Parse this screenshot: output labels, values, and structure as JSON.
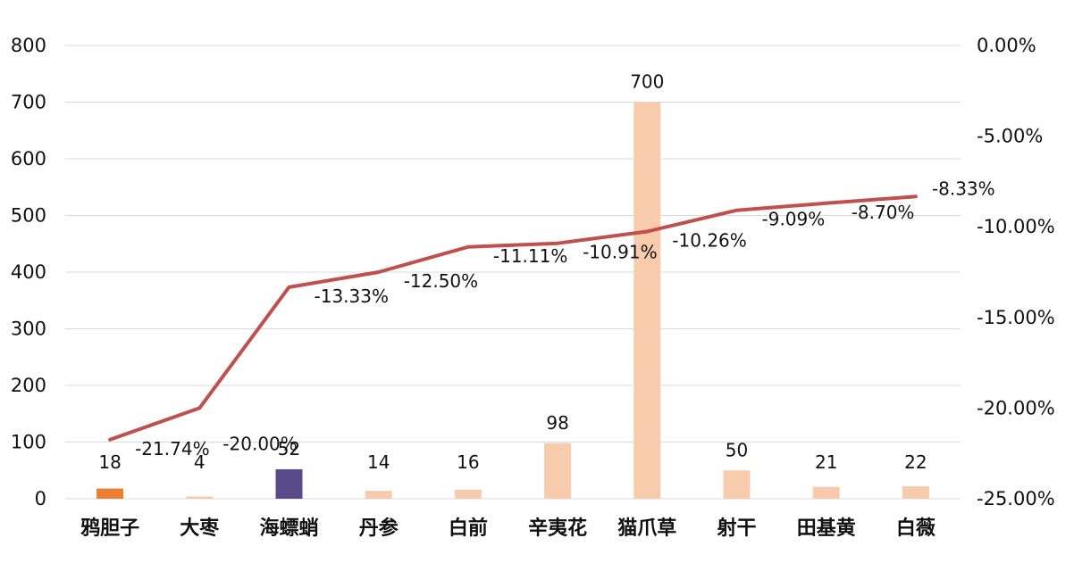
{
  "chart_data": {
    "type": "bar+line",
    "categories": [
      "鸦胆子",
      "大枣",
      "海螵蛸",
      "丹参",
      "白前",
      "辛夷花",
      "猫爪草",
      "射干",
      "田基黄",
      "白薇"
    ],
    "bar_values": [
      18,
      4,
      52,
      14,
      16,
      98,
      700,
      50,
      21,
      22
    ],
    "bar_labels": [
      "18",
      "4",
      "52",
      "14",
      "16",
      "98",
      "700",
      "50",
      "21",
      "22"
    ],
    "bar_colors": [
      "#ed7d31",
      "#f8cbad",
      "#5b4a8a",
      "#f8cbad",
      "#f8cbad",
      "#f8cbad",
      "#f8cbad",
      "#f8cbad",
      "#f8cbad",
      "#f8cbad"
    ],
    "line_values": [
      -21.74,
      -20.0,
      -13.33,
      -12.5,
      -11.11,
      -10.91,
      -10.26,
      -9.09,
      -8.7,
      -8.33
    ],
    "line_labels": [
      "-21.74%",
      "-20.00%",
      "-13.33%",
      "-12.50%",
      "-11.11%",
      "-10.91%",
      "-10.26%",
      "-9.09%",
      "-8.70%",
      "-8.33%"
    ],
    "line_color": "#c0504d",
    "y_left": {
      "lim": [
        0,
        800
      ],
      "ticks": [
        0,
        100,
        200,
        300,
        400,
        500,
        600,
        700,
        800
      ],
      "tick_labels": [
        "0",
        "100",
        "200",
        "300",
        "400",
        "500",
        "600",
        "700",
        "800"
      ]
    },
    "y_right": {
      "lim": [
        -25,
        0
      ],
      "ticks": [
        -25,
        -20,
        -15,
        -10,
        -5,
        0
      ],
      "tick_labels": [
        "-25.00%",
        "-20.00%",
        "-15.00%",
        "-10.00%",
        "-5.00%",
        "0.00%"
      ]
    },
    "grid": true,
    "legend": "none",
    "title": "",
    "xlabel": "",
    "ylabel": ""
  }
}
